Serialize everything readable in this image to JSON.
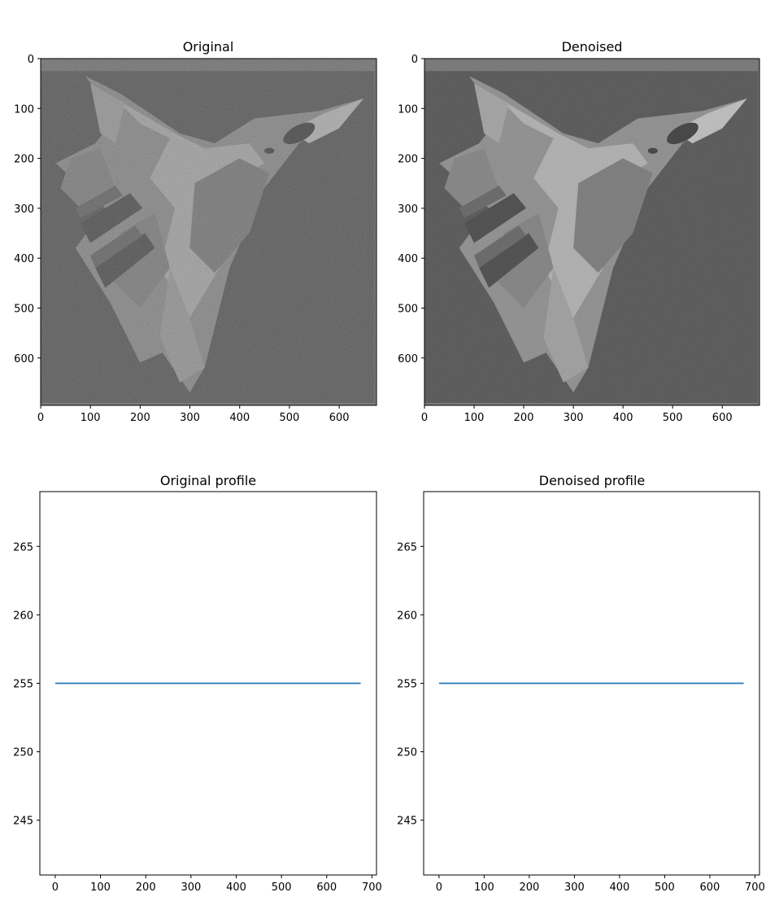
{
  "figure": {
    "background": "#ffffff",
    "line_color": "#1f77b4"
  },
  "chart_data": [
    {
      "type": "image",
      "title": "Original",
      "content": "noisy grayscale photograph of a fighter jet",
      "xlim": [
        0,
        675
      ],
      "ylim": [
        695,
        0
      ],
      "xticks": [
        0,
        100,
        200,
        300,
        400,
        500,
        600
      ],
      "yticks": [
        0,
        100,
        200,
        300,
        400,
        500,
        600
      ]
    },
    {
      "type": "image",
      "title": "Denoised",
      "content": "denoised grayscale photograph of a fighter jet",
      "xlim": [
        0,
        675
      ],
      "ylim": [
        695,
        0
      ],
      "xticks": [
        0,
        100,
        200,
        300,
        400,
        500,
        600
      ],
      "yticks": [
        0,
        100,
        200,
        300,
        400,
        500,
        600
      ]
    },
    {
      "type": "line",
      "title": "Original profile",
      "xlim": [
        -34,
        710
      ],
      "ylim": [
        241,
        269
      ],
      "xticks": [
        0,
        100,
        200,
        300,
        400,
        500,
        600,
        700
      ],
      "yticks": [
        245,
        250,
        255,
        260,
        265
      ],
      "grid": false,
      "series": [
        {
          "x": [
            0,
            675
          ],
          "y": [
            255,
            255
          ],
          "color": "#1f77b4"
        }
      ]
    },
    {
      "type": "line",
      "title": "Denoised profile",
      "xlim": [
        -34,
        710
      ],
      "ylim": [
        241,
        269
      ],
      "xticks": [
        0,
        100,
        200,
        300,
        400,
        500,
        600,
        700
      ],
      "yticks": [
        245,
        250,
        255,
        260,
        265
      ],
      "grid": false,
      "series": [
        {
          "x": [
            0,
            675
          ],
          "y": [
            255,
            255
          ],
          "color": "#1f77b4"
        }
      ]
    }
  ]
}
